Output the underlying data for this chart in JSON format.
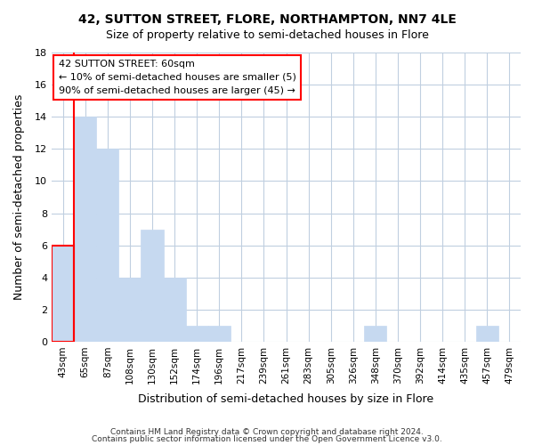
{
  "title": "42, SUTTON STREET, FLORE, NORTHAMPTON, NN7 4LE",
  "subtitle": "Size of property relative to semi-detached houses in Flore",
  "xlabel": "Distribution of semi-detached houses by size in Flore",
  "ylabel": "Number of semi-detached properties",
  "bin_labels": [
    "43sqm",
    "65sqm",
    "87sqm",
    "108sqm",
    "130sqm",
    "152sqm",
    "174sqm",
    "196sqm",
    "217sqm",
    "239sqm",
    "261sqm",
    "283sqm",
    "305sqm",
    "326sqm",
    "348sqm",
    "370sqm",
    "392sqm",
    "414sqm",
    "435sqm",
    "457sqm",
    "479sqm"
  ],
  "bar_heights": [
    6,
    14,
    12,
    4,
    7,
    4,
    1,
    1,
    0,
    0,
    0,
    0,
    0,
    0,
    1,
    0,
    0,
    0,
    0,
    1,
    0
  ],
  "bar_color": "#c6d9f0",
  "highlight_color": "#ff0000",
  "annotation_title": "42 SUTTON STREET: 60sqm",
  "annotation_line1": "← 10% of semi-detached houses are smaller (5)",
  "annotation_line2": "90% of semi-detached houses are larger (45) →",
  "ylim": [
    0,
    18
  ],
  "yticks": [
    0,
    2,
    4,
    6,
    8,
    10,
    12,
    14,
    16,
    18
  ],
  "footer1": "Contains HM Land Registry data © Crown copyright and database right 2024.",
  "footer2": "Contains public sector information licensed under the Open Government Licence v3.0.",
  "background_color": "#ffffff",
  "grid_color": "#c0cfe0"
}
